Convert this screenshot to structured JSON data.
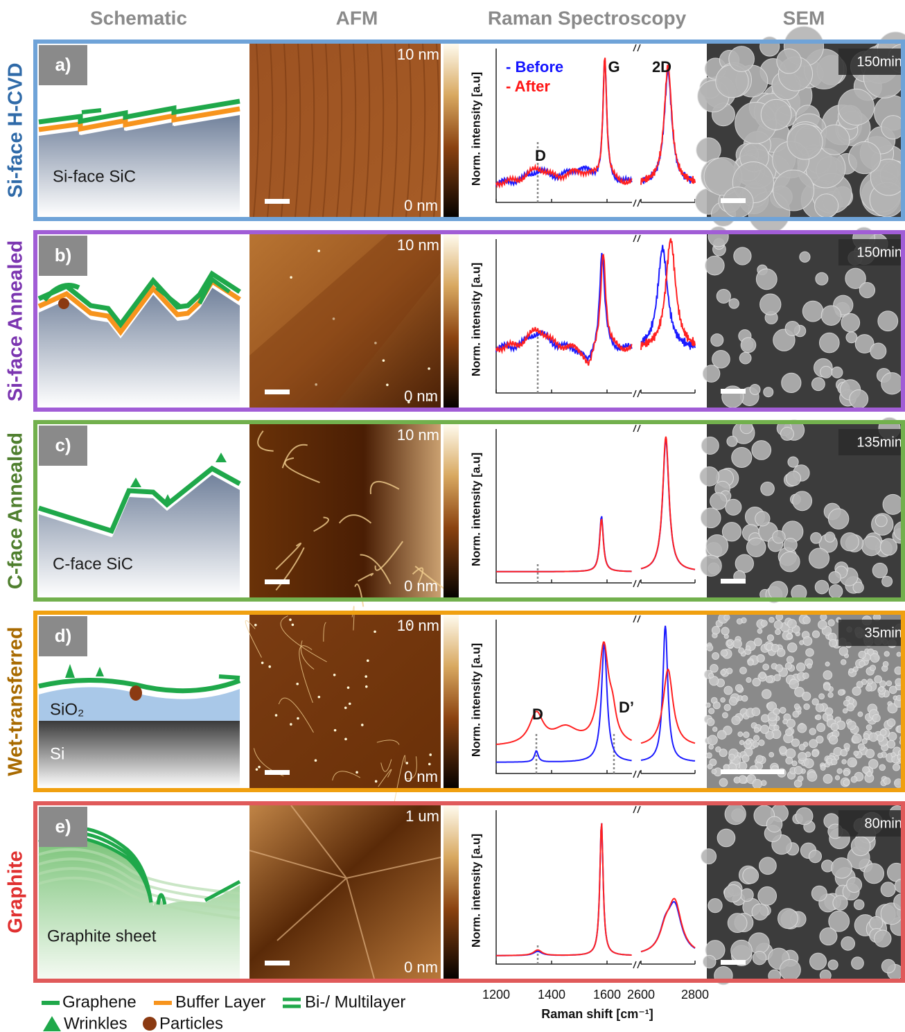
{
  "headers": [
    "Schematic",
    "AFM",
    "Raman Spectroscopy",
    "SEM"
  ],
  "rows": [
    {
      "label": "Si-face H-CVD",
      "panel": "a)",
      "schematic_labels": [
        "Si-face SiC"
      ],
      "afm_max": "10 nm",
      "afm_min": "0 nm",
      "raman_ylabel": "Norm. intensity [a.u]",
      "raman_labels": [
        "- Before",
        "- After",
        "D",
        "G",
        "2D"
      ],
      "sem_time": "150min"
    },
    {
      "label": "Si-face Annealed",
      "panel": "b)",
      "schematic_labels": [],
      "afm_max": "10 nm",
      "afm_min": "0 nm",
      "raman_ylabel": "Norm. intensity [a.u]",
      "raman_labels": [],
      "sem_time": "150min"
    },
    {
      "label": "C-face Annealed",
      "panel": "c)",
      "schematic_labels": [
        "C-face SiC"
      ],
      "afm_max": "10 nm",
      "afm_min": "0 nm",
      "raman_ylabel": "Norm. intensity [a.u]",
      "raman_labels": [],
      "sem_time": "135min"
    },
    {
      "label": "Wet-transferred",
      "panel": "d)",
      "schematic_labels": [
        "SiO₂",
        "Si"
      ],
      "afm_max": "10 nm",
      "afm_min": "0 nm",
      "raman_ylabel": "Norm. intensity [a.u]",
      "raman_labels": [
        "D",
        "D’"
      ],
      "sem_time": "35min"
    },
    {
      "label": "Graphite",
      "panel": "e)",
      "schematic_labels": [
        "Graphite sheet"
      ],
      "afm_max": "1 um",
      "afm_min": "0 nm",
      "raman_ylabel": "Norm. intensity [a.u]",
      "raman_labels": [],
      "sem_time": "80min"
    }
  ],
  "raman_axis": {
    "xlabel": "Raman shift [cm⁻¹]",
    "xticks": [
      1200,
      1400,
      1600,
      2600,
      2800
    ],
    "xlim": [
      1200,
      1690
    ],
    "x2lim": [
      2600,
      2800
    ]
  },
  "legend": [
    "Graphene",
    "Buffer Layer",
    "Bi-/ Multilayer",
    "Wrinkles",
    "Particles"
  ]
}
